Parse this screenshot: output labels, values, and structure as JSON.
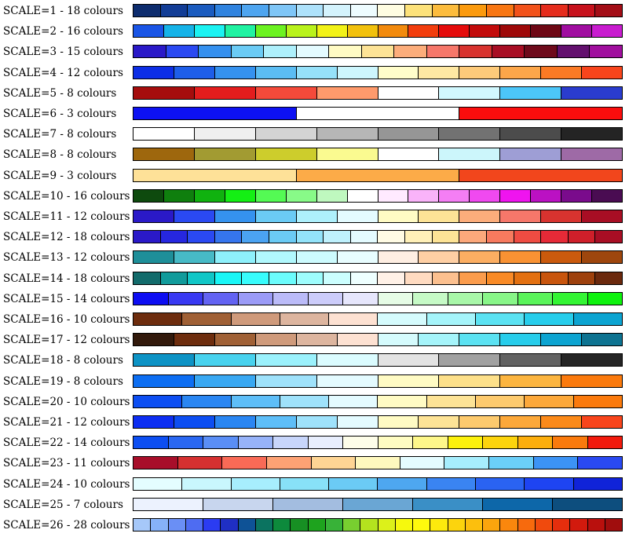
{
  "scales": [
    {
      "label": "SCALE=1 - 18 colours",
      "colors": [
        "#0d2c6e",
        "#123d96",
        "#1a5bbf",
        "#2f83df",
        "#4ea5f0",
        "#7fc6f7",
        "#aee2fb",
        "#d4f3fd",
        "#eefcff",
        "#fffde2",
        "#fde27a",
        "#fcbc3d",
        "#fb9a0d",
        "#f87612",
        "#f2521a",
        "#e52c1c",
        "#c7111c",
        "#a30d16"
      ]
    },
    {
      "label": "SCALE=2 - 16 colours",
      "colors": [
        "#1a55e6",
        "#16b3e8",
        "#1cf2f2",
        "#20f2a2",
        "#6cf221",
        "#b9f21c",
        "#f2f217",
        "#f2c10d",
        "#f28a0d",
        "#f23d0d",
        "#e50c0c",
        "#c20b0b",
        "#9e0909",
        "#6e0815",
        "#a00ea0",
        "#c81ccf"
      ]
    },
    {
      "label": "SCALE=3 - 15 colours",
      "colors": [
        "#2a19c8",
        "#2a49f2",
        "#3590ef",
        "#6bcbf5",
        "#aef0fc",
        "#e4fbff",
        "#fffbc4",
        "#fde396",
        "#fcad7b",
        "#f6776a",
        "#d8332f",
        "#a80e24",
        "#6e0a1b",
        "#63106e",
        "#a00e9e"
      ]
    },
    {
      "label": "SCALE=4 - 12 colours",
      "colors": [
        "#0d2ee6",
        "#1e5ee9",
        "#3592ef",
        "#5bbdf3",
        "#96e1f9",
        "#cdf6fd",
        "#fffdca",
        "#fee8a3",
        "#fdca7a",
        "#fca64a",
        "#fb7a25",
        "#f8451c"
      ]
    },
    {
      "label": "SCALE=5 - 8 colours",
      "colors": [
        "#a50d0d",
        "#e31d1d",
        "#f44a3a",
        "#fe9a6c",
        "#ffffff",
        "#d1f8fe",
        "#4cc6f9",
        "#2a3cce"
      ]
    },
    {
      "label": "SCALE=6 - 3 colours",
      "colors": [
        "#0d11f2",
        "#ffffff",
        "#fa0d0d"
      ]
    },
    {
      "label": "SCALE=7 - 8 colours",
      "colors": [
        "#ffffff",
        "#efefef",
        "#d4d4d4",
        "#b6b6b6",
        "#969696",
        "#727272",
        "#4c4c4c",
        "#242424"
      ]
    },
    {
      "label": "SCALE=8 - 8 colours",
      "colors": [
        "#9e670d",
        "#a29b32",
        "#cdcd2c",
        "#fafa90",
        "#ffffff",
        "#ccf6fb",
        "#9e9ed5",
        "#9e6aa6"
      ]
    },
    {
      "label": "SCALE=9 - 3 colours",
      "colors": [
        "#fee198",
        "#fcab48",
        "#f2461c"
      ]
    },
    {
      "label": "SCALE=10 - 16 colours",
      "colors": [
        "#0e4a0e",
        "#0f7f0e",
        "#10b20f",
        "#14ef14",
        "#54fa54",
        "#88fa88",
        "#bff8bf",
        "#ffffff",
        "#ffeaff",
        "#f9b3f9",
        "#f47ef4",
        "#f049f0",
        "#ef14ef",
        "#bb11c3",
        "#7a0b8c",
        "#4a0c52"
      ]
    },
    {
      "label": "SCALE=11 - 12 colours",
      "colors": [
        "#2a19c8",
        "#2a49f2",
        "#3592ef",
        "#6bcbf5",
        "#aef0fc",
        "#e4fbff",
        "#fffbc4",
        "#fde396",
        "#fcad7b",
        "#f6776a",
        "#d8332f",
        "#a80e24"
      ]
    },
    {
      "label": "SCALE=12 - 18 colours",
      "colors": [
        "#2a19c8",
        "#2627e0",
        "#2a49f2",
        "#3575ee",
        "#4ba3f2",
        "#6bcbf5",
        "#93e3fa",
        "#bff1fd",
        "#e4fbff",
        "#fffbe4",
        "#fff0b8",
        "#fde396",
        "#fca87b",
        "#f77a5e",
        "#ef4c42",
        "#e62a37",
        "#cf1f2a",
        "#a80e24"
      ]
    },
    {
      "label": "SCALE=13 - 12 colours",
      "colors": [
        "#1e8f99",
        "#47bac6",
        "#8ef0fb",
        "#b1f8fd",
        "#cdfbfe",
        "#e8fdff",
        "#feeee2",
        "#fecfa4",
        "#fcae62",
        "#f99233",
        "#ca5a0d",
        "#9e460d"
      ]
    },
    {
      "label": "SCALE=14 - 18 colours",
      "colors": [
        "#126b6b",
        "#119b9b",
        "#10c6c6",
        "#19f6f6",
        "#38fcfc",
        "#6bfcfc",
        "#9efdfd",
        "#cbfefe",
        "#eeffff",
        "#fff1e7",
        "#ffdbc1",
        "#fcc08f",
        "#fb9c4c",
        "#f98a26",
        "#e37010",
        "#c8550d",
        "#9e410d",
        "#6b290d"
      ]
    },
    {
      "label": "SCALE=15 - 14 colours",
      "colors": [
        "#0d0df2",
        "#3939f2",
        "#6363f2",
        "#9b9bf7",
        "#bbbbf8",
        "#ccccfa",
        "#e6e6fc",
        "#e6fce6",
        "#c6fac6",
        "#a8f7a8",
        "#88f688",
        "#5af45a",
        "#33f533",
        "#0df20d"
      ]
    },
    {
      "label": "SCALE=16 - 10 colours",
      "colors": [
        "#6e2d0e",
        "#a06035",
        "#cf9a7b",
        "#ddb59f",
        "#fde1d2",
        "#d5fbfd",
        "#a5f4fa",
        "#5be2f2",
        "#27cdeb",
        "#0ca4d1"
      ]
    },
    {
      "label": "SCALE=17 - 12 colours",
      "colors": [
        "#331a0c",
        "#6e2d0e",
        "#a06035",
        "#cf9a7b",
        "#ddb59f",
        "#fde1d2",
        "#d5fbfd",
        "#a5f4fa",
        "#5be2f2",
        "#27cdeb",
        "#0ca4d1",
        "#0d7391"
      ]
    },
    {
      "label": "SCALE=18 - 8 colours",
      "colors": [
        "#0d93c5",
        "#48d2ee",
        "#9bf1fc",
        "#dbfcff",
        "#e3e3e3",
        "#a1a1a1",
        "#626262",
        "#252525"
      ]
    },
    {
      "label": "SCALE=19 - 8 colours",
      "colors": [
        "#0d6ef2",
        "#39a8f2",
        "#9fe2fb",
        "#e4fbff",
        "#fffbc4",
        "#fde08a",
        "#fcb540",
        "#fb7a0d"
      ]
    },
    {
      "label": "SCALE=20 - 10 colours",
      "colors": [
        "#0d4ef2",
        "#2a86f2",
        "#5ebef8",
        "#9fe2fb",
        "#e4fbff",
        "#fffbc4",
        "#fde396",
        "#fdca6e",
        "#fca83a",
        "#fb7a0d"
      ]
    },
    {
      "label": "SCALE=21 - 12 colours",
      "colors": [
        "#0d2ef2",
        "#0d4ef2",
        "#2a86f2",
        "#5ebef8",
        "#9fe2fb",
        "#e4fbff",
        "#fffbc4",
        "#fde396",
        "#fdca6e",
        "#fca83a",
        "#fb8a1a",
        "#f8451c"
      ]
    },
    {
      "label": "SCALE=22 - 14 colours",
      "colors": [
        "#0d4ef2",
        "#2a67f2",
        "#5a8ef6",
        "#97b3f9",
        "#c8d6fb",
        "#e8eefd",
        "#fdfde9",
        "#fefcc2",
        "#fdf78a",
        "#fcf10d",
        "#fcd40d",
        "#fcae0d",
        "#fa7a0d",
        "#f21a0d"
      ]
    },
    {
      "label": "SCALE=23 - 11 colours",
      "colors": [
        "#a80e2a",
        "#d63030",
        "#f96a56",
        "#fda274",
        "#fed594",
        "#fef8be",
        "#e4fcff",
        "#a7eefd",
        "#6bcff8",
        "#3c93f5",
        "#2a49f2"
      ]
    },
    {
      "label": "SCALE=24 - 10 colours",
      "colors": [
        "#e4fdff",
        "#c9f7fd",
        "#a7eefd",
        "#88e1f8",
        "#6bcbf5",
        "#4ea7f0",
        "#3a84f2",
        "#2a63f2",
        "#1e44f2",
        "#1023d9"
      ]
    },
    {
      "label": "SCALE=25 - 7 colours",
      "colors": [
        "#ecf2fe",
        "#c8d6ee",
        "#a3bde0",
        "#6aa6d4",
        "#3a8fc6",
        "#0d67a9",
        "#0d4e7e"
      ]
    },
    {
      "label": "SCALE=26 - 28 colours",
      "colors": [
        "#a6c8f9",
        "#86b2f8",
        "#6a8ff5",
        "#4e6cf2",
        "#2b3cf2",
        "#1f2fc4",
        "#0e5296",
        "#0b7360",
        "#0d8a3c",
        "#178f23",
        "#1ea31e",
        "#38b238",
        "#78cf30",
        "#b4e31e",
        "#dcf11a",
        "#f6f90d",
        "#fefa0d",
        "#fcea0d",
        "#fcd40d",
        "#fcbf0d",
        "#fba50d",
        "#fa870d",
        "#f76a0d",
        "#f04a0d",
        "#e52e0d",
        "#d21a0d",
        "#b9100d",
        "#a00d0d"
      ]
    }
  ]
}
